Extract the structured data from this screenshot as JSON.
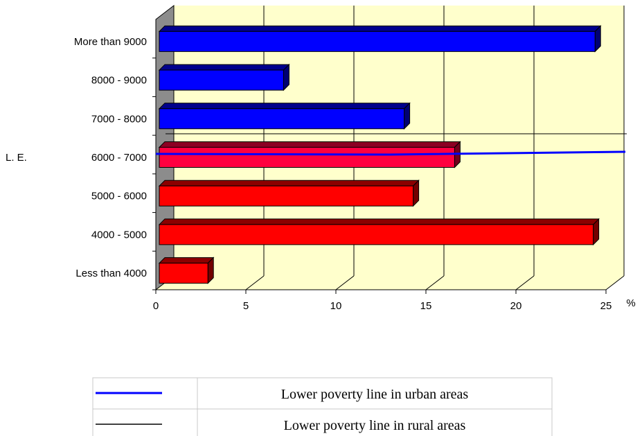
{
  "chart_data": {
    "type": "bar",
    "orientation": "horizontal",
    "categories": [
      "More than  9000",
      "8000 - 9000",
      "7000 - 8000",
      "6000 -  7000",
      "5000 -  6000",
      "4000 - 5000",
      "Less than 4000"
    ],
    "values": [
      24.2,
      6.9,
      13.6,
      16.4,
      14.1,
      24.1,
      2.7
    ],
    "bar_colors": [
      "#0000ff",
      "#0000ff",
      "#0000ff",
      "#ff0040",
      "#ff0000",
      "#ff0000",
      "#ff0000"
    ],
    "x_ticks": [
      "0",
      "5",
      "10",
      "15",
      "20",
      "25"
    ],
    "xlim": [
      0,
      25
    ],
    "x_unit": "%",
    "side_label": "L. E.",
    "reference_lines": [
      {
        "name": "Lower poverty line in urban areas",
        "color": "#0000ff",
        "at_category": "6000 -  7000"
      },
      {
        "name": "Lower poverty line in rural areas",
        "color": "#000000",
        "at_category": "6000 -  7000"
      }
    ],
    "grid": true,
    "plot_background": "#ffffcc",
    "legend_position": "bottom"
  }
}
